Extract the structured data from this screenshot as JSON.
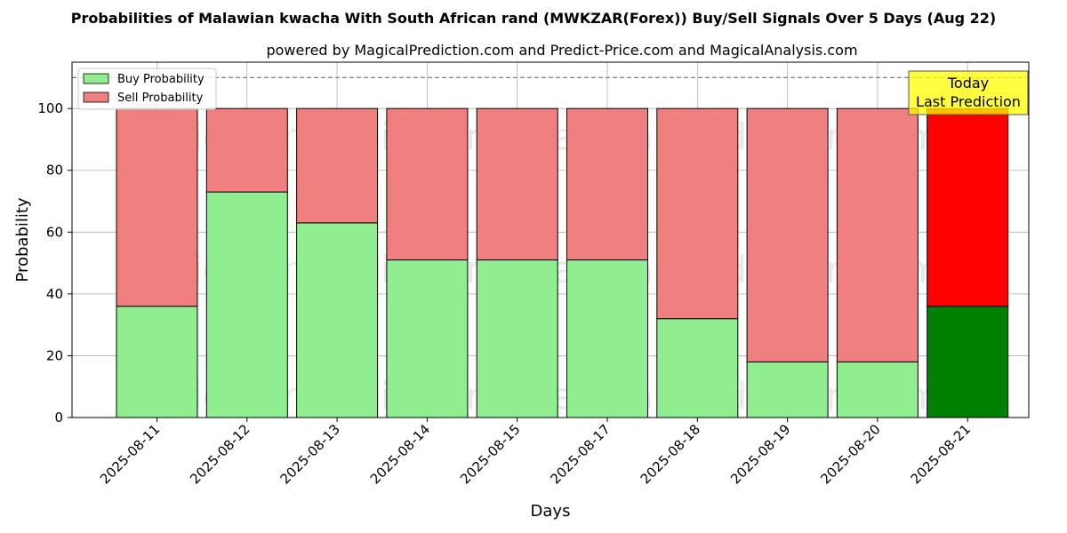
{
  "chart_data": {
    "type": "bar",
    "stacked": true,
    "title": "Probabilities of Malawian kwacha With South African rand (MWKZAR(Forex)) Buy/Sell Signals Over 5 Days (Aug 22)",
    "subtitle": "powered by MagicalPrediction.com and Predict-Price.com and MagicalAnalysis.com",
    "xlabel": "Days",
    "ylabel": "Probability",
    "ylim": [
      0,
      115
    ],
    "yticks": [
      0,
      20,
      40,
      60,
      80,
      100
    ],
    "grid": true,
    "legend_position": "top-left",
    "categories": [
      "2025-08-11",
      "2025-08-12",
      "2025-08-13",
      "2025-08-14",
      "2025-08-15",
      "2025-08-17",
      "2025-08-18",
      "2025-08-19",
      "2025-08-20",
      "2025-08-21"
    ],
    "series": [
      {
        "name": "Buy Probability",
        "color": "#90ee90",
        "highlight_color": "#008000",
        "values": [
          36,
          73,
          63,
          51,
          51,
          51,
          32,
          18,
          18,
          36
        ]
      },
      {
        "name": "Sell Probability",
        "color": "#f08080",
        "highlight_color": "#ff0000",
        "values": [
          64,
          27,
          37,
          49,
          49,
          49,
          68,
          82,
          82,
          64
        ]
      }
    ],
    "reference_line": {
      "value": 110,
      "style": "dashed",
      "color": "#808080"
    },
    "highlight_index": 9,
    "annotation": {
      "lines": [
        "Today",
        "Last Prediction"
      ],
      "color": "#ffff00"
    },
    "watermarks": [
      "MagicalAnalysis.com",
      "MagicalPrediction.com"
    ]
  }
}
